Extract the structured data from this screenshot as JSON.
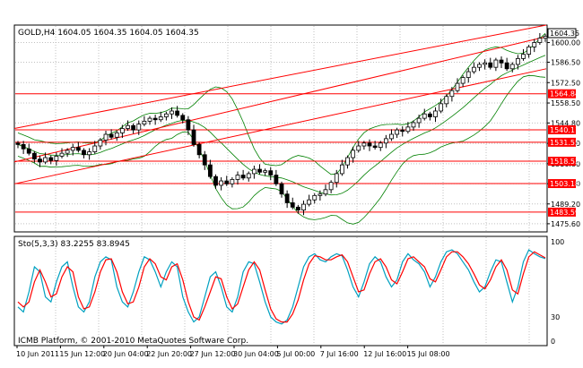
{
  "header": {
    "symbol": "GOLD",
    "timeframe": "H4",
    "title": "GOLD,H4  1604.05 1604.35 1604.05 1604.35"
  },
  "oscillator": {
    "title": "Sto(5,3,3) 83.2255 83.8945",
    "scale_max_label": "100",
    "scale_mid_label": "30",
    "scale_min_label": "0"
  },
  "footer": {
    "copyright": "ICMB Platform, © 2001-2010 MetaQuotes Software Corp."
  },
  "colors": {
    "background": "#ffffff",
    "grid": "#c0c0c0",
    "candle": "#000000",
    "bands": "#008000",
    "levels": "#ff0000",
    "stoch_main": "#00a0c0",
    "stoch_signal": "#ff0000",
    "current_price_box": "#ffffff"
  },
  "chart_data": {
    "type": "candlestick",
    "price_axis_ticks": [
      1600.0,
      1586.5,
      1572.5,
      1558.5,
      1544.8,
      1530.8,
      1516.8,
      1503.1,
      1489.2,
      1475.6
    ],
    "price_axis_labels": [
      "1600.00",
      "1586.50",
      "1572.50",
      "1558.50",
      "1544.80",
      "1530.80",
      "1516.80",
      "1503.10",
      "1489.20",
      "1475.60"
    ],
    "ylim": [
      1470.0,
      1612.0
    ],
    "current_price": "1604.35",
    "horizontal_levels": [
      1564.84,
      1540.11,
      1531.55,
      1518.53,
      1503.18,
      1483.59
    ],
    "horizontal_level_labels": [
      "1564.84",
      "1540.11",
      "1531.55",
      "1518.53",
      "1503.18",
      "1483.59"
    ],
    "time_labels": [
      "10 Jun 2011",
      "15 Jun 12:00",
      "20 Jun 04:00",
      "22 Jun 20:00",
      "27 Jun 12:00",
      "30 Jun 04:00",
      "5 Jul 00:00",
      "7 Jul 16:00",
      "12 Jul 16:00",
      "15 Jul 08:00"
    ],
    "closes": [
      1530,
      1527,
      1524,
      1520,
      1518,
      1521,
      1519,
      1522,
      1524,
      1526,
      1528,
      1526,
      1523,
      1525,
      1529,
      1533,
      1537,
      1535,
      1538,
      1541,
      1543,
      1540,
      1544,
      1546,
      1548,
      1547,
      1549,
      1551,
      1553,
      1550,
      1547,
      1540,
      1530,
      1523,
      1516,
      1508,
      1502,
      1505,
      1503,
      1506,
      1509,
      1507,
      1510,
      1513,
      1511,
      1512,
      1509,
      1503,
      1496,
      1490,
      1487,
      1485,
      1489,
      1492,
      1495,
      1496,
      1499,
      1504,
      1510,
      1516,
      1521,
      1526,
      1529,
      1531,
      1529,
      1528,
      1531,
      1534,
      1537,
      1540,
      1539,
      1542,
      1545,
      1548,
      1551,
      1549,
      1553,
      1558,
      1563,
      1567,
      1572,
      1576,
      1580,
      1583,
      1585,
      1586,
      1583,
      1588,
      1586,
      1582,
      1585,
      1589,
      1592,
      1597,
      1600,
      1603,
      1604.35
    ],
    "trend_channels": [
      {
        "from": [
          0,
          1541
        ],
        "to": [
          96,
          1612
        ]
      },
      {
        "from": [
          0,
          1518
        ],
        "to": [
          96,
          1604
        ]
      },
      {
        "from": [
          0,
          1503
        ],
        "to": [
          96,
          1582
        ]
      }
    ],
    "stochastic_main": [
      35,
      30,
      50,
      75,
      70,
      45,
      40,
      60,
      75,
      80,
      55,
      35,
      30,
      40,
      65,
      80,
      85,
      82,
      55,
      40,
      35,
      50,
      70,
      85,
      82,
      70,
      55,
      70,
      80,
      75,
      45,
      30,
      20,
      25,
      45,
      65,
      70,
      55,
      35,
      30,
      45,
      70,
      80,
      78,
      60,
      40,
      25,
      20,
      18,
      22,
      35,
      55,
      75,
      85,
      88,
      82,
      80,
      85,
      88,
      86,
      72,
      55,
      45,
      60,
      78,
      85,
      80,
      65,
      55,
      62,
      80,
      88,
      82,
      78,
      70,
      55,
      65,
      80,
      90,
      92,
      88,
      80,
      72,
      60,
      50,
      55,
      70,
      82,
      80,
      60,
      40,
      55,
      80,
      92,
      88,
      85,
      83.2
    ],
    "stochastic_signal": [
      40,
      35,
      40,
      60,
      72,
      60,
      45,
      48,
      65,
      75,
      70,
      45,
      33,
      35,
      50,
      70,
      82,
      83,
      70,
      50,
      38,
      40,
      55,
      75,
      83,
      78,
      65,
      62,
      75,
      78,
      62,
      40,
      25,
      22,
      35,
      50,
      65,
      63,
      45,
      33,
      38,
      55,
      72,
      80,
      72,
      52,
      33,
      23,
      20,
      20,
      28,
      42,
      62,
      78,
      86,
      85,
      82,
      82,
      85,
      87,
      80,
      65,
      50,
      52,
      68,
      80,
      83,
      75,
      62,
      58,
      70,
      83,
      85,
      80,
      75,
      63,
      60,
      72,
      85,
      90,
      90,
      85,
      78,
      68,
      57,
      53,
      62,
      75,
      82,
      72,
      52,
      48,
      68,
      85,
      90,
      87,
      83.9
    ]
  }
}
